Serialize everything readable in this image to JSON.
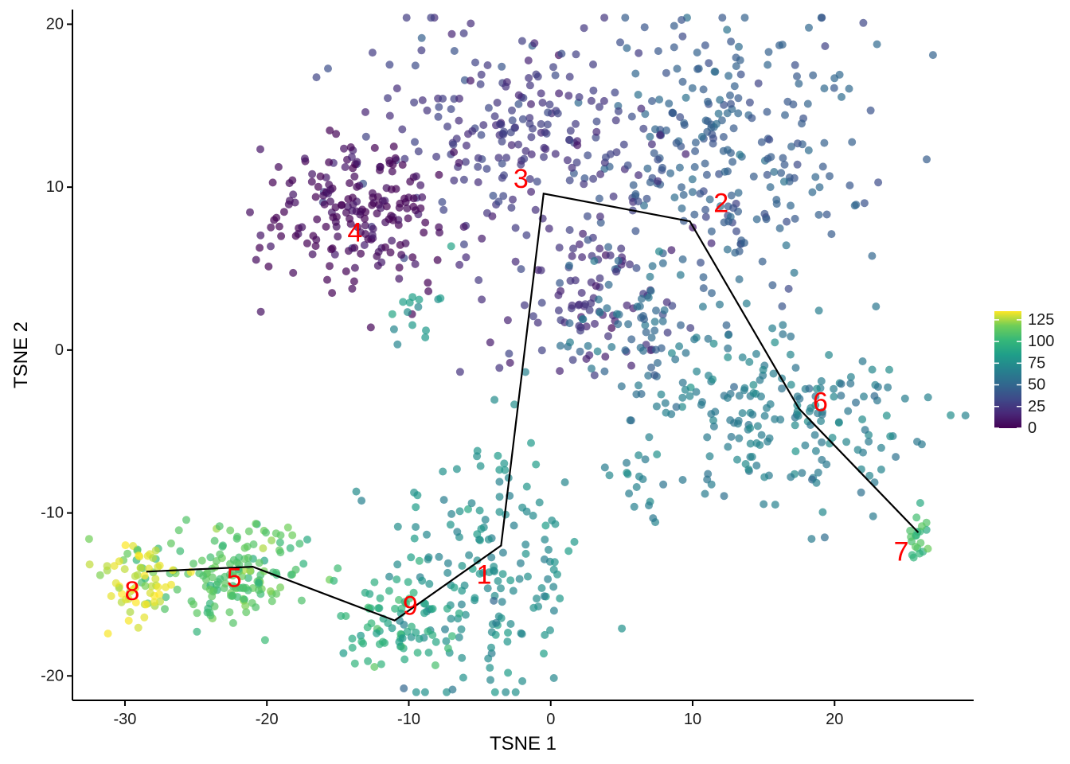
{
  "chart_data": {
    "type": "scatter",
    "title": "",
    "xlabel": "TSNE 1",
    "ylabel": "TSNE 2",
    "xlim": [
      -33.7,
      29.8
    ],
    "ylim": [
      -21.5,
      20.9
    ],
    "x_ticks": [
      -30,
      -20,
      -10,
      0,
      10,
      20
    ],
    "y_ticks": [
      -20,
      -10,
      0,
      10,
      20
    ],
    "x_tick_labels": [
      "-30",
      "-20",
      "-10",
      "0",
      "10",
      "20"
    ],
    "y_tick_labels": [
      "-20",
      "-10",
      "0",
      "10",
      "20"
    ],
    "grid": false,
    "point_opacity": 0.7,
    "colorscale": "viridis",
    "legend": {
      "placement": "right",
      "range": [
        0,
        135
      ],
      "ticks": [
        0,
        25,
        50,
        75,
        100,
        125
      ],
      "tick_labels": [
        "0",
        "25",
        "50",
        "75",
        "100",
        "125"
      ]
    },
    "trajectory": [
      {
        "x": -28.5,
        "y": -13.6
      },
      {
        "x": -21,
        "y": -13.3
      },
      {
        "x": -11,
        "y": -16.6
      },
      {
        "x": -3.5,
        "y": -12.0
      },
      {
        "x": -0.5,
        "y": 9.6
      },
      {
        "x": 9.8,
        "y": 7.9
      },
      {
        "x": 17.5,
        "y": -3.6
      },
      {
        "x": 25.9,
        "y": -11.2
      }
    ],
    "clusters": [
      {
        "label": "1",
        "x": -4.7,
        "y": -13.8,
        "value": 75,
        "sx": 3.5,
        "sy": 4.5,
        "n": 170,
        "label_x": -4.7,
        "label_y": -13.8
      },
      {
        "label": "2",
        "x": 12.5,
        "y": 12.5,
        "value": 45,
        "sx": 4.8,
        "sy": 4.2,
        "n": 260,
        "label_x": 12.0,
        "label_y": 9.0
      },
      {
        "label": "3",
        "x": -2.5,
        "y": 13.2,
        "value": 25,
        "sx": 5.5,
        "sy": 3.6,
        "n": 220,
        "label_x": -2.1,
        "label_y": 10.5
      },
      {
        "label": "4",
        "x": -13.5,
        "y": 8.3,
        "value": 3,
        "sx": 3.4,
        "sy": 2.5,
        "n": 190,
        "label_x": -13.8,
        "label_y": 7.2
      },
      {
        "label": "5",
        "x": -22.5,
        "y": -13.8,
        "value": 110,
        "sx": 3.0,
        "sy": 1.5,
        "n": 150,
        "label_x": -22.3,
        "label_y": -14.0
      },
      {
        "label": "6",
        "x": 16.0,
        "y": -3.8,
        "value": 65,
        "sx": 4.6,
        "sy": 2.6,
        "n": 200,
        "label_x": 19.0,
        "label_y": -3.2
      },
      {
        "label": "7",
        "x": 26.0,
        "y": -11.4,
        "value": 103,
        "sx": 0.4,
        "sy": 0.7,
        "n": 20,
        "label_x": 24.7,
        "label_y": -12.4
      },
      {
        "label": "8",
        "x": -29.3,
        "y": -14.0,
        "value": 130,
        "sx": 1.6,
        "sy": 1.3,
        "n": 60,
        "label_x": -29.5,
        "label_y": -14.8
      },
      {
        "label": "9",
        "x": -11.0,
        "y": -16.6,
        "value": 95,
        "sx": 2.3,
        "sy": 1.4,
        "n": 70,
        "label_x": -9.9,
        "label_y": -15.7
      }
    ],
    "extra_groups": [
      {
        "x": 3.0,
        "y": 3.0,
        "value": 20,
        "sx": 3.5,
        "sy": 2.5,
        "n": 90
      },
      {
        "x": 6.0,
        "y": 1.5,
        "value": 55,
        "sx": 3.0,
        "sy": 2.5,
        "n": 70
      },
      {
        "x": 6.0,
        "y": -8.0,
        "value": 70,
        "sx": 1.0,
        "sy": 1.5,
        "n": 15
      },
      {
        "x": -9.0,
        "y": 2.0,
        "value": 80,
        "sx": 1.5,
        "sy": 1.5,
        "n": 15
      },
      {
        "x": -19.5,
        "y": -11.5,
        "value": 112,
        "sx": 1.0,
        "sy": 0.4,
        "n": 8
      }
    ]
  }
}
